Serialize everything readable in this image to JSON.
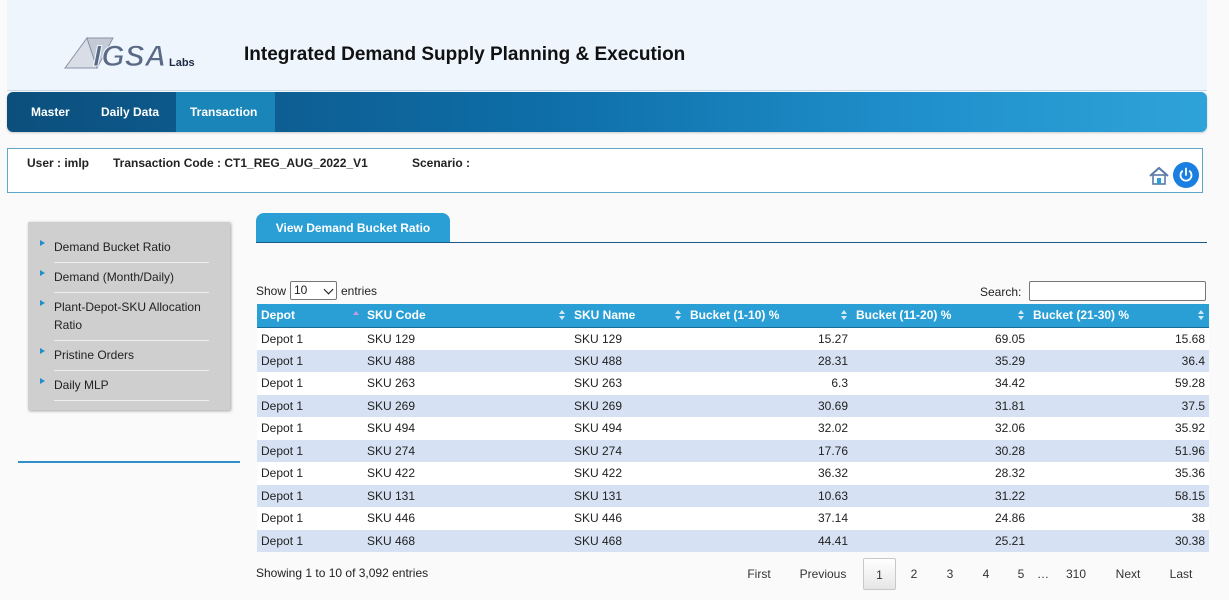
{
  "header": {
    "logo_text": "IGSA Labs",
    "title": "Integrated Demand Supply Planning & Execution"
  },
  "nav": {
    "items": [
      {
        "label": "Master"
      },
      {
        "label": "Daily Data"
      },
      {
        "label": "Transaction",
        "active": true
      }
    ]
  },
  "infobar": {
    "user": "User : imlp",
    "transaction_code": "Transaction Code : CT1_REG_AUG_2022_V1",
    "scenario": "Scenario :",
    "home_icon": "home-icon",
    "power_icon": "power-icon"
  },
  "sidebar": {
    "items": [
      {
        "label": "Demand Bucket Ratio"
      },
      {
        "label": "Demand (Month/Daily)"
      },
      {
        "label": "Plant-Depot-SKU Allocation Ratio"
      },
      {
        "label": "Pristine Orders"
      },
      {
        "label": "Daily MLP"
      }
    ]
  },
  "tab": {
    "label": "View Demand Bucket Ratio"
  },
  "controls": {
    "show_label": "Show",
    "page_size": "10",
    "entries_label": "entries",
    "search_label": "Search:",
    "search_value": ""
  },
  "table": {
    "columns": [
      "Depot",
      "SKU Code",
      "SKU Name",
      "Bucket (1-10) %",
      "Bucket (11-20) %",
      "Bucket (21-30) %"
    ],
    "rows": [
      [
        "Depot 1",
        "SKU 129",
        "SKU 129",
        "15.27",
        "69.05",
        "15.68"
      ],
      [
        "Depot 1",
        "SKU 488",
        "SKU 488",
        "28.31",
        "35.29",
        "36.4"
      ],
      [
        "Depot 1",
        "SKU 263",
        "SKU 263",
        "6.3",
        "34.42",
        "59.28"
      ],
      [
        "Depot 1",
        "SKU 269",
        "SKU 269",
        "30.69",
        "31.81",
        "37.5"
      ],
      [
        "Depot 1",
        "SKU 494",
        "SKU 494",
        "32.02",
        "32.06",
        "35.92"
      ],
      [
        "Depot 1",
        "SKU 274",
        "SKU 274",
        "17.76",
        "30.28",
        "51.96"
      ],
      [
        "Depot 1",
        "SKU 422",
        "SKU 422",
        "36.32",
        "28.32",
        "35.36"
      ],
      [
        "Depot 1",
        "SKU 131",
        "SKU 131",
        "10.63",
        "31.22",
        "58.15"
      ],
      [
        "Depot 1",
        "SKU 446",
        "SKU 446",
        "37.14",
        "24.86",
        "38"
      ],
      [
        "Depot 1",
        "SKU 468",
        "SKU 468",
        "44.41",
        "25.21",
        "30.38"
      ]
    ]
  },
  "footer": {
    "info": "Showing 1 to 10 of 3,092 entries",
    "pagination": {
      "first": "First",
      "previous": "Previous",
      "pages": [
        "1",
        "2",
        "3",
        "4",
        "5"
      ],
      "current": "1",
      "ellipsis": "…",
      "last_page": "310",
      "next": "Next",
      "last": "Last"
    }
  },
  "colors": {
    "accent": "#2a9fd6",
    "nav_dark": "#0c4f7d",
    "row_even": "#d6e2f3",
    "power_button": "#1a7fe0"
  }
}
